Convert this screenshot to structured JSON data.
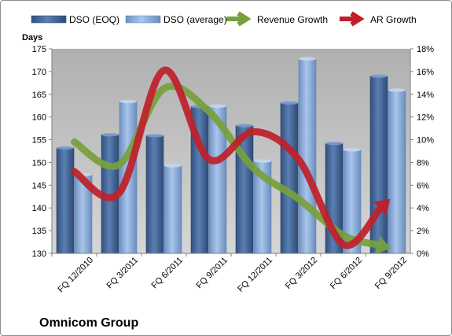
{
  "chart_data": {
    "type": "bar",
    "company": "Omnicom Group",
    "y_left_label": "Days",
    "categories": [
      "FQ 12/2010",
      "FQ 3/2011",
      "FQ 6/2011",
      "FQ 9/2011",
      "FQ 12/2011",
      "FQ 3/2012",
      "FQ 6/2012",
      "FQ 9/2012"
    ],
    "y_left_ticks": [
      "130",
      "135",
      "140",
      "145",
      "150",
      "155",
      "160",
      "165",
      "170",
      "175"
    ],
    "y_right_ticks": [
      "0%",
      "2%",
      "4%",
      "6%",
      "8%",
      "10%",
      "12%",
      "14%",
      "16%",
      "18%"
    ],
    "ylim_left": [
      130,
      175
    ],
    "ylim_right": [
      0,
      18
    ],
    "series": [
      {
        "name": "DSO (EOQ)",
        "kind": "bar",
        "axis": "left",
        "color": "#4a6ea0",
        "values": [
          153.2,
          156.1,
          155.9,
          162.3,
          158.1,
          163.1,
          154.2,
          169.0
        ]
      },
      {
        "name": "DSO (average)",
        "kind": "bar",
        "axis": "left",
        "color": "#8fb1dc",
        "values": [
          147.3,
          163.4,
          149.3,
          162.4,
          150.3,
          172.8,
          152.8,
          165.9
        ]
      },
      {
        "name": "Revenue Growth",
        "kind": "line",
        "axis": "right",
        "color": "#77a03c",
        "values": [
          9.8,
          7.8,
          14.5,
          12.5,
          7.5,
          4.8,
          1.6,
          0.5
        ]
      },
      {
        "name": "AR Growth",
        "kind": "line",
        "axis": "right",
        "color": "#c0202a",
        "values": [
          7.2,
          5.3,
          16.1,
          8.3,
          10.7,
          8.3,
          0.8,
          4.6
        ]
      }
    ],
    "grid": false,
    "legend_position": "top"
  }
}
